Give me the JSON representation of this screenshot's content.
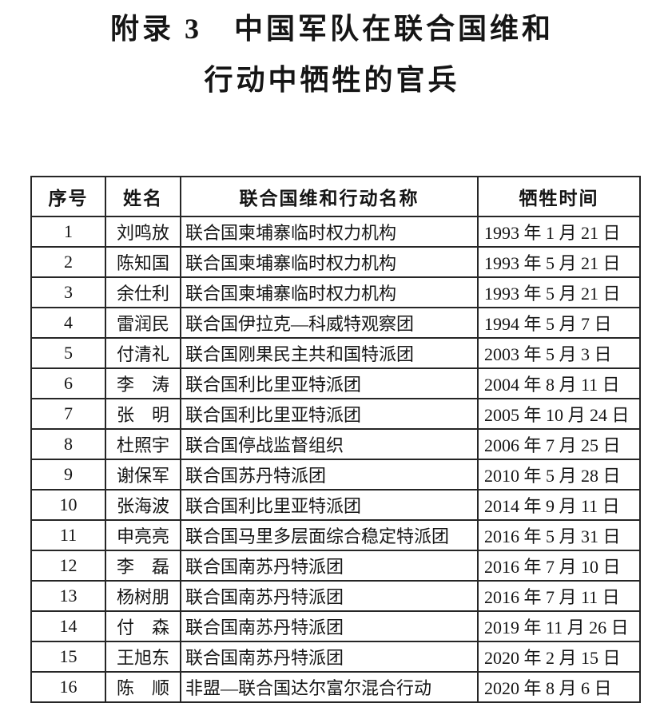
{
  "title": {
    "line1": "附录 3　中国军队在联合国维和",
    "line2": "行动中牺牲的官兵"
  },
  "colors": {
    "background": "#ffffff",
    "text": "#151515",
    "table_border": "#262626"
  },
  "table": {
    "headers": [
      "序号",
      "姓名",
      "联合国维和行动名称",
      "牺牲时间"
    ],
    "rows": [
      {
        "no": "1",
        "name": "刘鸣放",
        "mission": "联合国柬埔寨临时权力机构",
        "date": "1993 年 1 月 21 日"
      },
      {
        "no": "2",
        "name": "陈知国",
        "mission": "联合国柬埔寨临时权力机构",
        "date": "1993 年 5 月 21 日"
      },
      {
        "no": "3",
        "name": "余仕利",
        "mission": "联合国柬埔寨临时权力机构",
        "date": "1993 年 5 月 21 日"
      },
      {
        "no": "4",
        "name": "雷润民",
        "mission": "联合国伊拉克—科威特观察团",
        "date": "1994 年 5 月 7 日"
      },
      {
        "no": "5",
        "name": "付清礼",
        "mission": "联合国刚果民主共和国特派团",
        "date": "2003 年 5 月 3 日"
      },
      {
        "no": "6",
        "name": "李　涛",
        "mission": "联合国利比里亚特派团",
        "date": "2004 年 8 月 11 日"
      },
      {
        "no": "7",
        "name": "张　明",
        "mission": "联合国利比里亚特派团",
        "date": "2005 年 10 月 24 日"
      },
      {
        "no": "8",
        "name": "杜照宇",
        "mission": "联合国停战监督组织",
        "date": "2006 年 7 月 25 日"
      },
      {
        "no": "9",
        "name": "谢保军",
        "mission": "联合国苏丹特派团",
        "date": "2010 年 5 月 28 日"
      },
      {
        "no": "10",
        "name": "张海波",
        "mission": "联合国利比里亚特派团",
        "date": "2014 年 9 月 11 日"
      },
      {
        "no": "11",
        "name": "申亮亮",
        "mission": "联合国马里多层面综合稳定特派团",
        "date": "2016 年 5 月 31 日"
      },
      {
        "no": "12",
        "name": "李　磊",
        "mission": "联合国南苏丹特派团",
        "date": "2016 年 7 月 10 日"
      },
      {
        "no": "13",
        "name": "杨树朋",
        "mission": "联合国南苏丹特派团",
        "date": "2016 年 7 月 11 日"
      },
      {
        "no": "14",
        "name": "付　森",
        "mission": "联合国南苏丹特派团",
        "date": "2019 年 11 月 26 日"
      },
      {
        "no": "15",
        "name": "王旭东",
        "mission": "联合国南苏丹特派团",
        "date": "2020 年 2 月 15 日"
      },
      {
        "no": "16",
        "name": "陈　顺",
        "mission": "非盟—联合国达尔富尔混合行动",
        "date": "2020 年 8 月 6 日"
      }
    ]
  }
}
